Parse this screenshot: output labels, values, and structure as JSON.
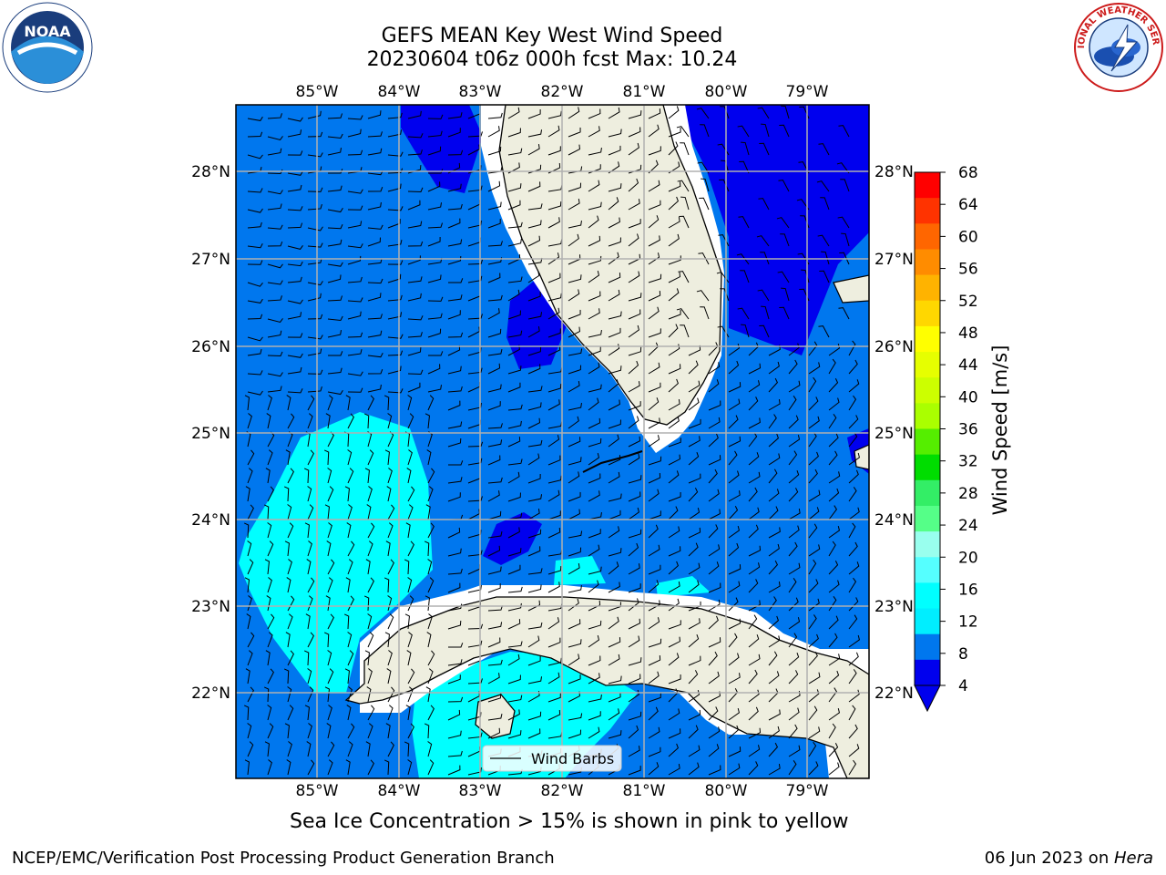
{
  "title": {
    "line1": "GEFS MEAN Key West Wind Speed",
    "line2": "20230604 t06z 000h fcst   Max: 10.24"
  },
  "logos": {
    "left": "noaa-logo",
    "right": "national-weather-service-logo",
    "left_text": "NOAA",
    "right_text": "NATIONAL WEATHER SERVICE"
  },
  "map": {
    "lon_ticks": [
      "85°W",
      "84°W",
      "83°W",
      "82°W",
      "81°W",
      "80°W",
      "79°W"
    ],
    "lat_ticks": [
      "28°N",
      "27°N",
      "26°N",
      "25°N",
      "24°N",
      "23°N",
      "22°N"
    ],
    "extent": {
      "lon": [
        -86,
        -78.3
      ],
      "lat": [
        21.1,
        28.7
      ]
    },
    "legend_label": "Wind Barbs",
    "colors": {
      "land": "#eeeedf",
      "coast": "#000000",
      "grid": "#b0b0b0"
    }
  },
  "colorbar": {
    "label": "Wind Speed [m/s]",
    "ticks": [
      "68",
      "64",
      "60",
      "56",
      "52",
      "48",
      "44",
      "40",
      "36",
      "32",
      "28",
      "24",
      "20",
      "16",
      "12",
      "8",
      "4"
    ],
    "colors": [
      "#ff0000",
      "#ff3300",
      "#ff6600",
      "#ff8c00",
      "#ffb300",
      "#ffd700",
      "#ffff00",
      "#e6ff00",
      "#ccff00",
      "#aaff00",
      "#55ee00",
      "#00dd00",
      "#33ee66",
      "#55ff88",
      "#99ffee",
      "#55ffff",
      "#00ffff",
      "#00eeff",
      "#0077ee",
      "#0000ee"
    ],
    "under_color": "#0000ee"
  },
  "caption": "Sea Ice Concentration > 15% is shown in pink to yellow",
  "footer": {
    "left": "NCEP/EMC/Verification Post Processing Product Generation Branch",
    "right_date": "06 Jun 2023 on ",
    "right_host": "Hera"
  }
}
